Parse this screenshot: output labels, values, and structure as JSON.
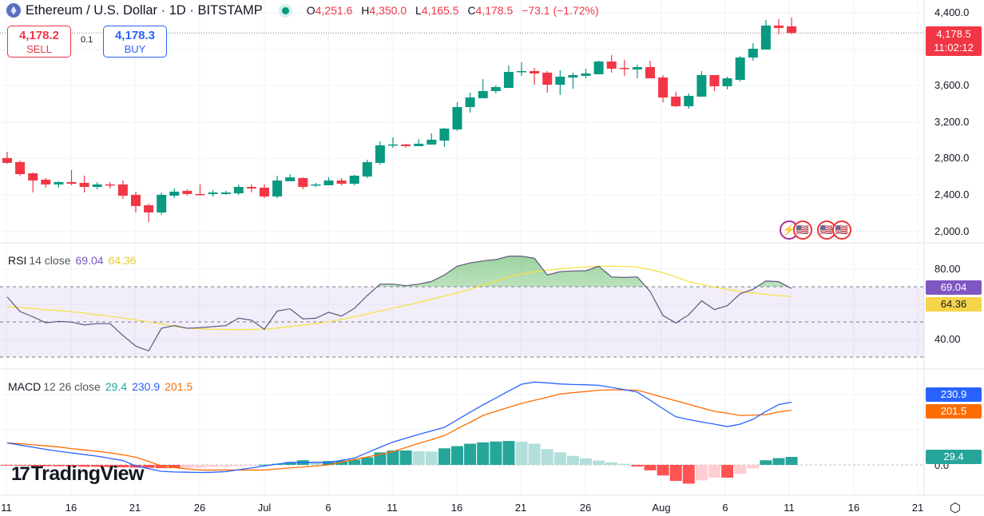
{
  "header": {
    "title": "Ethereum / U.S. Dollar · 1D · BITSTAMP",
    "market_status": "open",
    "ohlc": [
      {
        "k": "O",
        "v": "4,251.6"
      },
      {
        "k": "H",
        "v": "4,350.0"
      },
      {
        "k": "L",
        "v": "4,165.5"
      },
      {
        "k": "C",
        "v": "4,178.5"
      }
    ],
    "change": "−73.1 (−1.72%)"
  },
  "trade": {
    "sell_price": "4,178.2",
    "sell_label": "SELL",
    "spread": "0.1",
    "buy_price": "4,178.3",
    "buy_label": "BUY"
  },
  "price_axis": {
    "ticks": [
      "4,400.0",
      "3,600.0",
      "3,200.0",
      "2,800.0",
      "2,400.0",
      "2,000.0"
    ],
    "last_price": "4,178.5",
    "countdown": "11:02:12"
  },
  "rsi": {
    "label": "RSI",
    "params": "14 close",
    "value": "69.04",
    "ma_value": "64.36",
    "ticks": [
      "80.00",
      "40.00"
    ]
  },
  "macd": {
    "label": "MACD",
    "params": "12 26 close",
    "hist_value": "29.4",
    "macd_value": "230.9",
    "signal_value": "201.5",
    "zero_tick": "0.0"
  },
  "time_axis": [
    "11",
    "16",
    "21",
    "26",
    "Jul",
    "6",
    "11",
    "16",
    "21",
    "26",
    "Aug",
    "6",
    "11",
    "16",
    "21"
  ],
  "branding": "TradingView",
  "colors": {
    "up": "#089981",
    "down": "#f23645",
    "rsi": "#7e57c2",
    "rsi_ma": "#f7e04b",
    "macd": "#2962ff",
    "signal": "#ff6d00",
    "hist_up": "#26a69a",
    "hist_up_fade": "#b2dfdb",
    "hist_down": "#ff5252",
    "hist_down_fade": "#ffcdd2"
  },
  "event_icons": [
    "lightning-icon",
    "us-flag-icon",
    "us-flag-icon",
    "us-flag-icon"
  ],
  "chart_data": {
    "type": "candlestick",
    "first_date": "Jun 11",
    "last_date": "Aug 11",
    "ylim": [
      2000,
      4400
    ],
    "ohlc": [
      [
        2808,
        2877,
        2746,
        2755
      ],
      [
        2764,
        2781,
        2615,
        2632
      ],
      [
        2641,
        2650,
        2431,
        2562
      ],
      [
        2571,
        2589,
        2484,
        2519
      ],
      [
        2519,
        2554,
        2484,
        2545
      ],
      [
        2545,
        2676,
        2510,
        2527
      ],
      [
        2536,
        2615,
        2431,
        2492
      ],
      [
        2492,
        2545,
        2466,
        2519
      ],
      [
        2519,
        2545,
        2475,
        2510
      ],
      [
        2519,
        2562,
        2361,
        2396
      ],
      [
        2405,
        2440,
        2212,
        2282
      ],
      [
        2291,
        2309,
        2107,
        2212
      ],
      [
        2212,
        2431,
        2186,
        2405
      ],
      [
        2396,
        2475,
        2370,
        2440
      ],
      [
        2449,
        2466,
        2396,
        2414
      ],
      [
        2414,
        2519,
        2396,
        2405
      ],
      [
        2414,
        2458,
        2387,
        2431
      ],
      [
        2414,
        2449,
        2405,
        2431
      ],
      [
        2422,
        2519,
        2405,
        2492
      ],
      [
        2492,
        2519,
        2431,
        2475
      ],
      [
        2484,
        2519,
        2370,
        2387
      ],
      [
        2387,
        2615,
        2370,
        2562
      ],
      [
        2554,
        2632,
        2554,
        2597
      ],
      [
        2589,
        2597,
        2466,
        2492
      ],
      [
        2510,
        2536,
        2492,
        2519
      ],
      [
        2510,
        2597,
        2510,
        2562
      ],
      [
        2562,
        2589,
        2510,
        2527
      ],
      [
        2527,
        2624,
        2510,
        2615
      ],
      [
        2606,
        2790,
        2589,
        2764
      ],
      [
        2755,
        2991,
        2737,
        2948
      ],
      [
        2948,
        3035,
        2921,
        2957
      ],
      [
        2957,
        2965,
        2921,
        2939
      ],
      [
        2939,
        3017,
        2939,
        2965
      ],
      [
        2956,
        3079,
        2956,
        3009
      ],
      [
        2999,
        3140,
        2930,
        3131
      ],
      [
        3122,
        3420,
        3105,
        3367
      ],
      [
        3367,
        3525,
        3306,
        3472
      ],
      [
        3464,
        3674,
        3464,
        3542
      ],
      [
        3542,
        3604,
        3516,
        3586
      ],
      [
        3577,
        3822,
        3577,
        3752
      ],
      [
        3752,
        3857,
        3709,
        3761
      ],
      [
        3761,
        3796,
        3612,
        3735
      ],
      [
        3744,
        3761,
        3525,
        3612
      ],
      [
        3612,
        3770,
        3499,
        3700
      ],
      [
        3691,
        3744,
        3569,
        3717
      ],
      [
        3709,
        3787,
        3682,
        3735
      ],
      [
        3726,
        3875,
        3726,
        3866
      ],
      [
        3866,
        3936,
        3744,
        3787
      ],
      [
        3796,
        3884,
        3709,
        3787
      ],
      [
        3779,
        3831,
        3682,
        3805
      ],
      [
        3805,
        3875,
        3682,
        3682
      ],
      [
        3691,
        3717,
        3420,
        3472
      ],
      [
        3481,
        3534,
        3367,
        3376
      ],
      [
        3376,
        3516,
        3350,
        3490
      ],
      [
        3481,
        3761,
        3481,
        3717
      ],
      [
        3717,
        3717,
        3542,
        3595
      ],
      [
        3595,
        3700,
        3560,
        3682
      ],
      [
        3665,
        3927,
        3647,
        3910
      ],
      [
        3910,
        4067,
        3875,
        4006
      ],
      [
        3997,
        4321,
        3997,
        4260
      ],
      [
        4260,
        4330,
        4164,
        4234
      ],
      [
        4251.6,
        4350,
        4165.5,
        4178.5
      ]
    ],
    "rsi": [
      64.2,
      55.9,
      52.9,
      49.5,
      50.3,
      49.9,
      48.3,
      49,
      49,
      42.3,
      36.2,
      33.5,
      46.4,
      47.9,
      46.4,
      46.7,
      47.3,
      47.9,
      52.1,
      51,
      45.8,
      56.2,
      57.4,
      51.7,
      52.1,
      55.5,
      53.3,
      57.7,
      65,
      71.5,
      71.5,
      70.6,
      71.5,
      73,
      76.7,
      81.7,
      83.6,
      84.7,
      85.5,
      87.4,
      87.4,
      86.2,
      76.7,
      78.6,
      79,
      79.1,
      81.7,
      75.6,
      75.3,
      75.6,
      67.3,
      53.6,
      49.4,
      54,
      62,
      57,
      59.2,
      66,
      68.5,
      73.3,
      72.9,
      69.04
    ],
    "rsi_ma": [
      58.6,
      58.2,
      57.6,
      57,
      56.4,
      55.8,
      55,
      54,
      53.2,
      52.2,
      51.2,
      50,
      48.8,
      47.5,
      46.4,
      46,
      45.8,
      45.7,
      45.6,
      45.7,
      45.8,
      46.5,
      47.3,
      48.2,
      49.1,
      50,
      51.4,
      52.9,
      54.5,
      56.1,
      57.8,
      59.4,
      61.1,
      62.9,
      64.7,
      66.5,
      68.6,
      70.9,
      73.2,
      75.5,
      77.3,
      78.6,
      79.5,
      80.2,
      80.8,
      81.3,
      81.6,
      81.7,
      81.6,
      81.2,
      79.8,
      78,
      75.6,
      72.9,
      71.3,
      69.8,
      68.5,
      67.3,
      66.5,
      65.7,
      65,
      64.36
    ],
    "rsi_levels": [
      70,
      50,
      30
    ],
    "macd": [
      81,
      73,
      65,
      57,
      50,
      44,
      38,
      32,
      24,
      16,
      -4,
      -14,
      -24,
      -26,
      -27,
      -28,
      -27,
      -25,
      -18,
      -11,
      -4,
      3,
      9,
      9,
      9,
      9,
      17,
      25,
      45,
      65,
      84,
      98,
      112,
      125,
      138,
      166,
      194,
      221,
      246,
      272,
      297,
      305,
      302,
      298,
      296,
      295,
      293,
      285,
      277,
      268,
      238,
      207,
      177,
      167,
      158,
      150,
      141,
      150,
      168,
      197,
      222,
      230.9
    ],
    "signal": [
      81,
      78,
      74,
      70,
      66,
      60,
      55,
      50,
      44,
      37,
      28,
      13,
      -4,
      -10,
      -15,
      -19,
      -19,
      -19,
      -19,
      -19,
      -19,
      -15,
      -11,
      -8,
      -4,
      0,
      10,
      20,
      29,
      39,
      49,
      64,
      79,
      93,
      108,
      133,
      157,
      182,
      197,
      212,
      226,
      238,
      249,
      261,
      266,
      270,
      275,
      276,
      276,
      275,
      262,
      249,
      236,
      223,
      210,
      197,
      190,
      182,
      183,
      185,
      195,
      201.5
    ],
    "histogram": [
      -2,
      -3,
      -4,
      -5,
      -5,
      -6,
      -7,
      -7,
      -8,
      -9,
      -10,
      -11,
      -12,
      -12,
      -11,
      -10,
      -8,
      -6,
      -4,
      -2,
      1,
      4,
      10,
      17,
      12,
      14,
      16,
      19,
      28,
      46,
      53,
      53,
      50,
      49,
      61,
      69,
      78,
      83,
      86,
      88,
      85,
      78,
      58,
      46,
      33,
      24,
      16,
      9,
      4,
      -6,
      -20,
      -39,
      -59,
      -69,
      -57,
      -47,
      -47,
      -33,
      -13,
      17,
      25,
      29.4
    ]
  }
}
